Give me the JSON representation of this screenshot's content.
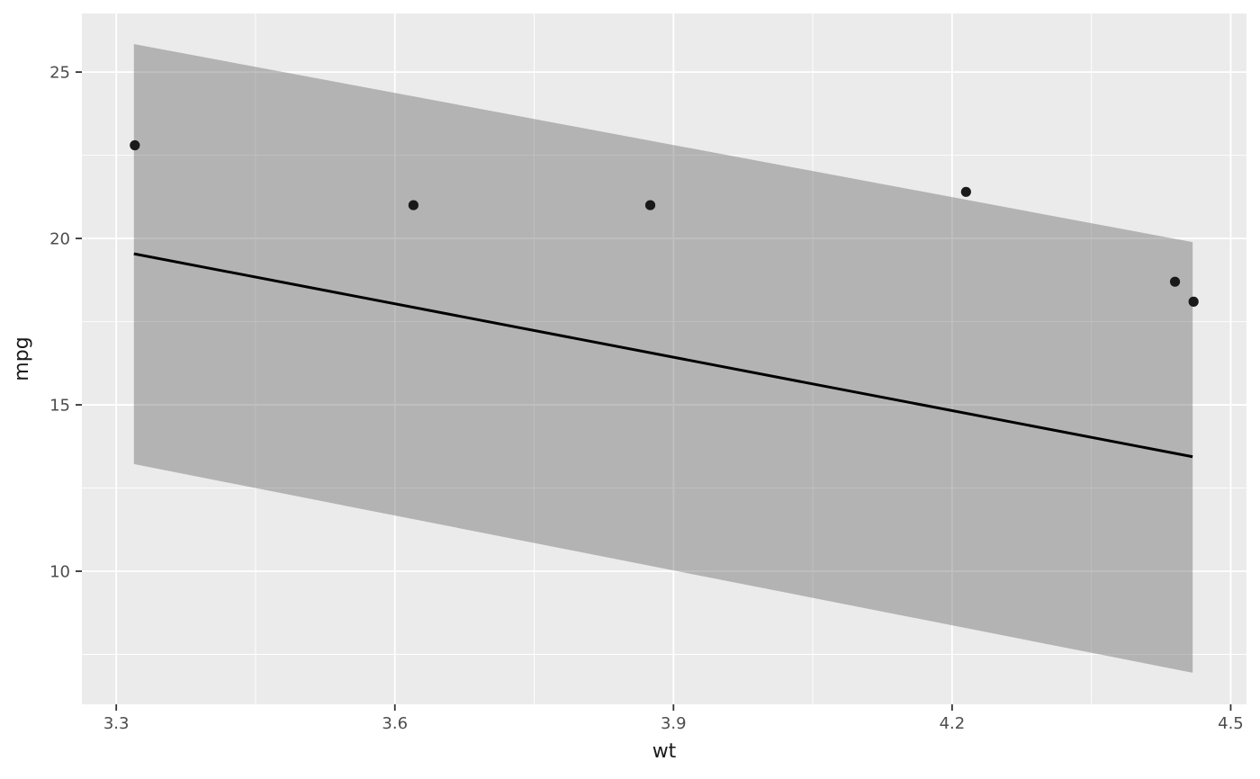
{
  "chart_data": {
    "type": "scatter",
    "title": "",
    "xlabel": "wt",
    "ylabel": "mpg",
    "xlim": [
      3.263,
      4.517
    ],
    "ylim": [
      6.0,
      26.76
    ],
    "grid": "on",
    "legend": "none",
    "x_ticks": {
      "values": [
        3.3,
        3.6,
        3.9,
        4.2,
        4.5
      ],
      "labels": [
        "3.3",
        "3.6",
        "3.9",
        "4.2",
        "4.5"
      ]
    },
    "y_ticks": {
      "values": [
        10,
        15,
        20,
        25
      ],
      "labels": [
        "10",
        "15",
        "20",
        "25"
      ]
    },
    "x_minor_gridlines": [
      3.45,
      3.75,
      4.05,
      4.35
    ],
    "y_minor_gridlines": [
      7.5,
      12.5,
      17.5,
      22.5
    ],
    "points": {
      "x": [
        3.32,
        3.62,
        3.875,
        4.215,
        4.44,
        4.46
      ],
      "y": [
        22.8,
        21.0,
        21.0,
        21.4,
        18.7,
        18.1
      ]
    },
    "regression_line": {
      "x": [
        3.319,
        4.459
      ],
      "y": [
        19.54,
        13.44
      ]
    },
    "confidence_ribbon": {
      "x": [
        3.319,
        4.459
      ],
      "upper": [
        25.84,
        19.89
      ],
      "lower": [
        13.22,
        6.95
      ]
    },
    "colors": {
      "page_bg": "#FFFFFF",
      "panel_bg": "#EBEBEB",
      "gridline": "#FFFFFF",
      "ribbon_fill": "#5F5F5F",
      "ribbon_opacity": 0.4,
      "line": "#000000",
      "point": "#1A1A1A",
      "tick_label": "#4D4D4D",
      "tick_mark": "#333333",
      "axis_title": "#1A1A1A"
    },
    "style": {
      "point_radius": 5.6,
      "line_width": 3,
      "major_grid_width": 1.8,
      "minor_grid_width": 0.9,
      "tick_length": 7,
      "tick_label_size": 18,
      "axis_title_size": 22
    }
  }
}
